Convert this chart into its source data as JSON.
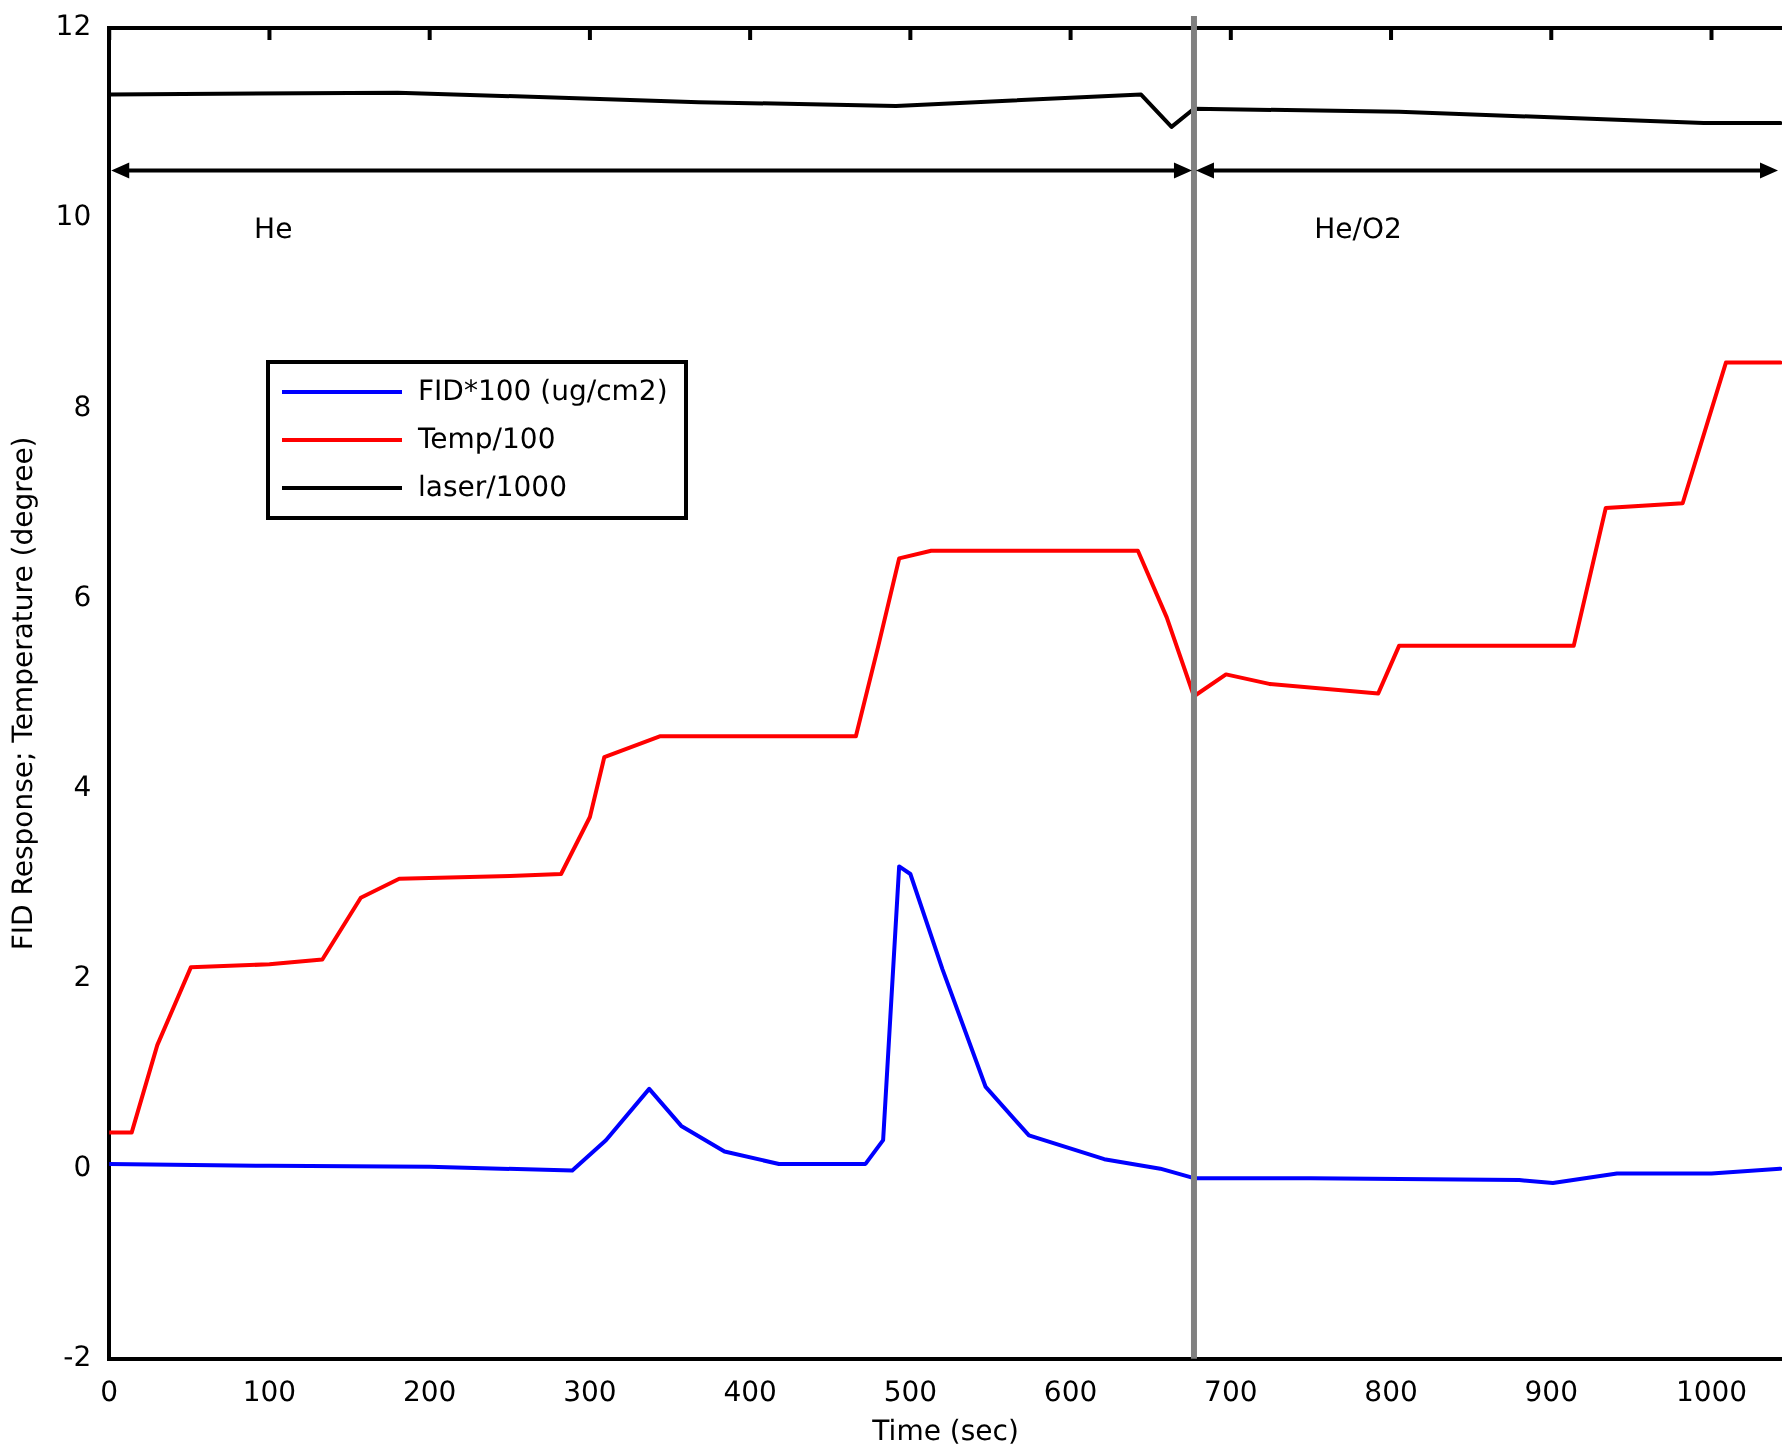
{
  "chart_data": {
    "type": "line",
    "xlabel": "Time (sec)",
    "ylabel": "FID Response; Temperature (degree)",
    "xlim": [
      0,
      1044
    ],
    "xticks": [
      0,
      100,
      200,
      300,
      400,
      500,
      600,
      700,
      800,
      900,
      1000
    ],
    "ylim": [
      -2,
      12
    ],
    "yticks": [
      -2,
      0,
      2,
      4,
      6,
      8,
      10,
      12
    ],
    "grid": false,
    "legend": "top left",
    "marker": "none",
    "line_style": "solid",
    "series": [
      {
        "name": "FID*100 (ug/cm2)",
        "color": "#0000ff",
        "x": [
          0,
          100,
          200,
          289,
          310,
          337,
          357,
          384,
          418,
          472,
          483,
          493,
          500,
          520,
          547,
          574,
          621,
          656,
          677,
          750,
          880,
          901,
          941,
          1000,
          1043
        ],
        "values": [
          0.05,
          0.03,
          0.02,
          -0.02,
          0.3,
          0.84,
          0.45,
          0.18,
          0.05,
          0.05,
          0.3,
          3.18,
          3.1,
          2.1,
          0.86,
          0.35,
          0.1,
          0.0,
          -0.1,
          -0.1,
          -0.12,
          -0.15,
          -0.05,
          -0.05,
          0.0
        ]
      },
      {
        "name": "Temp/100",
        "color": "#ff0000",
        "x": [
          0,
          14,
          30,
          51,
          100,
          133,
          157,
          181,
          250,
          282,
          300,
          309,
          344,
          400,
          466,
          480,
          493,
          513,
          600,
          642,
          660,
          677,
          697,
          724,
          792,
          805,
          850,
          914,
          934,
          982,
          1009,
          1043
        ],
        "values": [
          0.38,
          0.38,
          1.3,
          2.12,
          2.15,
          2.2,
          2.85,
          3.05,
          3.08,
          3.1,
          3.7,
          4.33,
          4.55,
          4.55,
          4.55,
          5.5,
          6.42,
          6.5,
          6.5,
          6.5,
          5.8,
          4.97,
          5.2,
          5.1,
          5.0,
          5.5,
          5.5,
          5.5,
          6.95,
          7.0,
          8.48,
          8.48
        ]
      },
      {
        "name": "laser/1000",
        "color": "#000000",
        "x": [
          0,
          180,
          368,
          491,
          644,
          663,
          677,
          805,
          995,
          1043
        ],
        "values": [
          11.3,
          11.32,
          11.22,
          11.18,
          11.3,
          10.96,
          11.15,
          11.12,
          11.0,
          11.0
        ]
      }
    ],
    "ref_lines": [
      {
        "axis": "x",
        "value": 677,
        "color": "#808080"
      }
    ],
    "annotations": [
      "He",
      "He/O2"
    ]
  }
}
